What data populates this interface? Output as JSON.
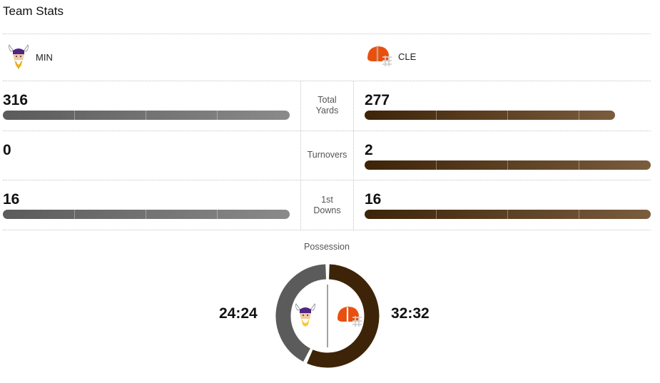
{
  "title": "Team Stats",
  "teams": {
    "away": {
      "abbr": "MIN",
      "logo": "vikings-logo",
      "color": "#5b5b5b"
    },
    "home": {
      "abbr": "CLE",
      "logo": "browns-helmet-logo",
      "color": "#3d2408"
    }
  },
  "stats": [
    {
      "label": [
        "Total",
        "Yards"
      ],
      "min": "316",
      "cle": "277",
      "min_fraction": 1.0,
      "cle_fraction": 0.877
    },
    {
      "label": [
        "Turnovers"
      ],
      "min": "0",
      "cle": "2",
      "min_fraction": 0.0,
      "cle_fraction": 1.0
    },
    {
      "label": [
        "1st",
        "Downs"
      ],
      "min": "16",
      "cle": "16",
      "min_fraction": 1.0,
      "cle_fraction": 1.0
    }
  ],
  "possession": {
    "label": "Possession",
    "min_time": "24:24",
    "cle_time": "32:32",
    "min_minutes": 24.4,
    "cle_minutes": 32.53
  }
}
